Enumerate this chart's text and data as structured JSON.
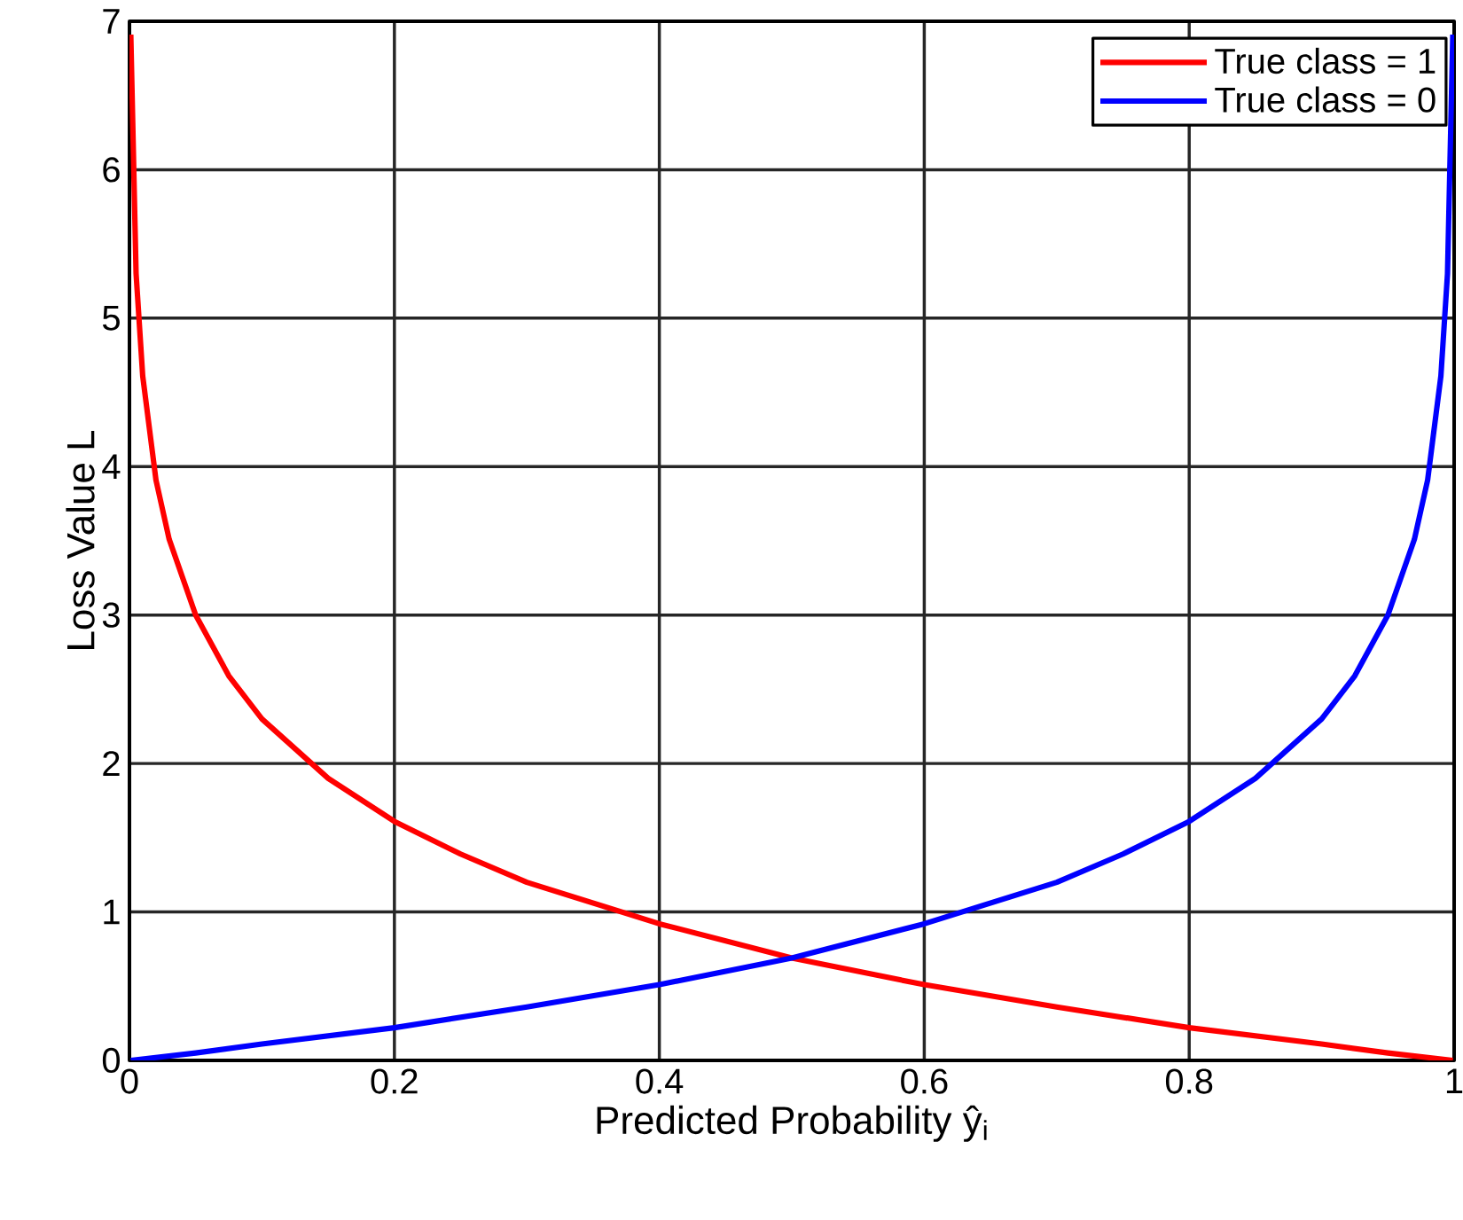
{
  "chart_data": {
    "type": "line",
    "xlabel": "Predicted Probability ŷ$_{i}$",
    "ylabel": "Loss Value L",
    "xlim": [
      0,
      1
    ],
    "ylim": [
      0,
      7
    ],
    "xticks": [
      0,
      0.2,
      0.4,
      0.6,
      0.8,
      1
    ],
    "yticks": [
      0,
      1,
      2,
      3,
      4,
      5,
      6,
      7
    ],
    "grid": true,
    "legend": "top right",
    "line_style": "solid",
    "marker": "none",
    "series": [
      {
        "name": "True class = 1",
        "color": "#ff0000",
        "x": [
          0.001,
          0.005,
          0.01,
          0.02,
          0.03,
          0.05,
          0.075,
          0.1,
          0.15,
          0.2,
          0.25,
          0.3,
          0.4,
          0.5,
          0.6,
          0.7,
          0.8,
          0.9,
          0.95,
          0.999
        ],
        "values": [
          6.91,
          5.3,
          4.61,
          3.91,
          3.51,
          3.0,
          2.59,
          2.3,
          1.9,
          1.61,
          1.39,
          1.2,
          0.92,
          0.69,
          0.51,
          0.36,
          0.22,
          0.11,
          0.05,
          0.0
        ]
      },
      {
        "name": "True class = 0",
        "color": "#0000ff",
        "x": [
          0.001,
          0.05,
          0.1,
          0.2,
          0.3,
          0.4,
          0.5,
          0.6,
          0.7,
          0.75,
          0.8,
          0.85,
          0.9,
          0.925,
          0.95,
          0.97,
          0.98,
          0.99,
          0.995,
          0.999
        ],
        "values": [
          0.0,
          0.05,
          0.11,
          0.22,
          0.36,
          0.51,
          0.69,
          0.92,
          1.2,
          1.39,
          1.61,
          1.9,
          2.3,
          2.59,
          3.0,
          3.51,
          3.91,
          4.61,
          5.3,
          6.91
        ]
      }
    ]
  }
}
